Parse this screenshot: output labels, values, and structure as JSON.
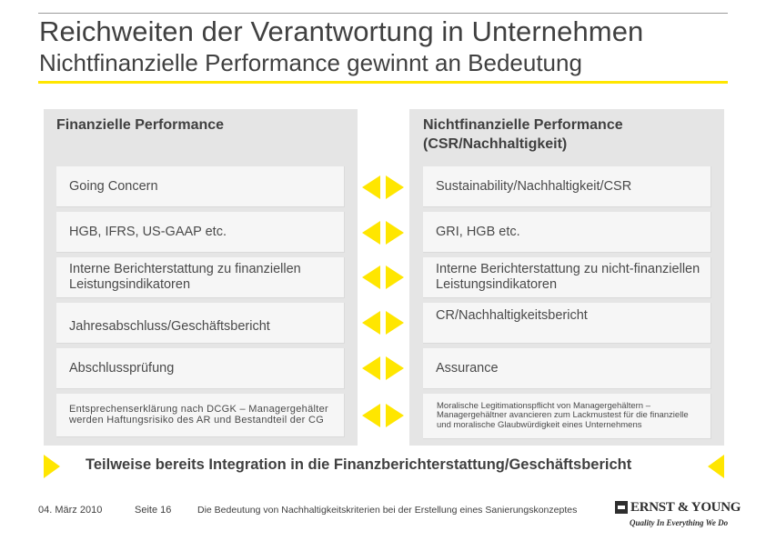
{
  "header": {
    "title": "Reichweiten der Verantwortung in Unternehmen",
    "subtitle": "Nichtfinanzielle Performance gewinnt an Bedeutung"
  },
  "left_panel": {
    "heading": "Finanzielle Performance",
    "items": [
      "Going Concern",
      "HGB, IFRS, US-GAAP etc.",
      "Interne Berichterstattung zu finanziellen Leistungsindikatoren",
      "Jahresabschluss/Geschäftsbericht",
      "Abschlussprüfung",
      "Entsprechenserklärung nach DCGK – Managergehälter werden Haftungsrisiko des AR und Bestandteil der CG"
    ]
  },
  "right_panel": {
    "heading": "Nichtfinanzielle Performance (CSR/Nachhaltigkeit)",
    "items": [
      "Sustainability/Nachhaltigkeit/CSR",
      "GRI, HGB etc.",
      "Interne Berichterstattung zu nicht-finanziellen Leistungsindikatoren",
      "CR/Nachhaltigkeitsbericht",
      "Assurance",
      "Moralische Legitimationspflicht von Managergehältern – Managergehältner avancieren zum Lackmustest für die finanzielle und moralische Glaubwürdigkeit eines Unternehmens"
    ]
  },
  "conclusion": "Teilweise bereits Integration in die Finanzberichterstattung/Geschäftsbericht",
  "footer": {
    "date": "04. März 2010",
    "page": "Seite 16",
    "text": "Die Bedeutung von Nachhaltigkeitskriterien bei der Erstellung eines Sanierungskonzeptes"
  },
  "logo": {
    "name": "ERNST & YOUNG",
    "tagline": "Quality In Everything We Do"
  },
  "colors": {
    "accent": "#ffe600",
    "panel": "#e5e5e5",
    "box": "#f6f6f6",
    "text": "#404040"
  },
  "icons": {
    "pair_arrow": "double-arrow-icon",
    "conclusion_arrow": "triangle-arrow-icon"
  }
}
